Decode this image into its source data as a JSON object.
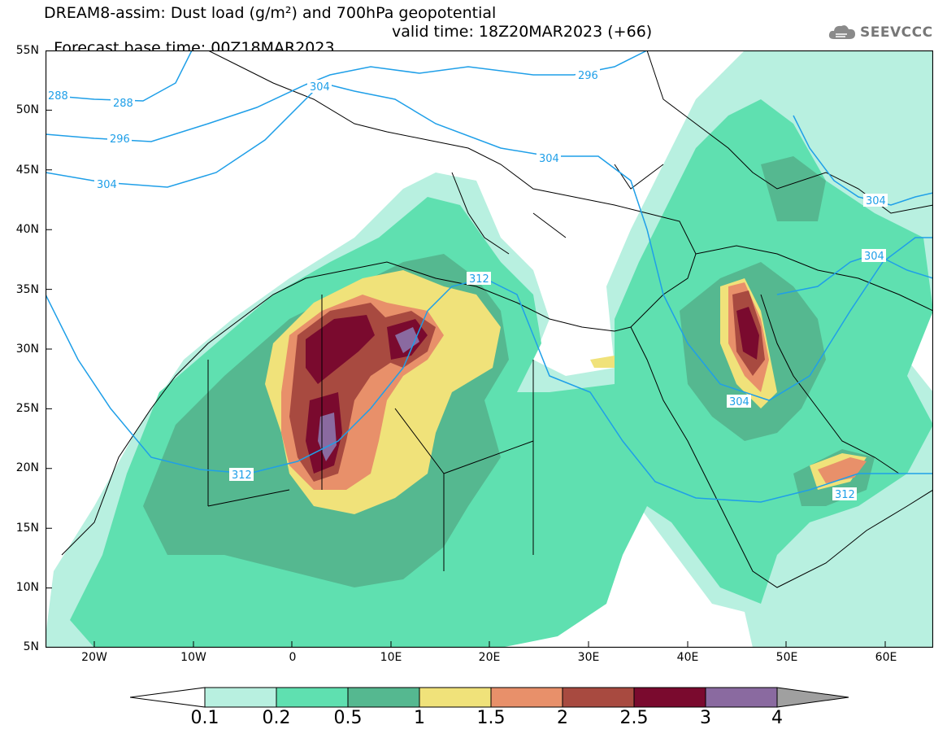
{
  "title": {
    "line1": "DREAM8-assim: Dust load (g/m²) and 700hPa geopotential",
    "line2_base": "Forecast base time: 00Z18MAR2023",
    "line2_valid": "valid time: 18Z20MAR2023 (+66)"
  },
  "logo": {
    "icon": "cloud-logo-icon",
    "text": "SEEVCCC"
  },
  "axes": {
    "lat_ticks": [
      "55N",
      "50N",
      "45N",
      "40N",
      "35N",
      "30N",
      "25N",
      "20N",
      "15N",
      "10N",
      "5N"
    ],
    "lon_ticks": [
      "20W",
      "10W",
      "0",
      "10E",
      "20E",
      "30E",
      "40E",
      "50E",
      "60E"
    ]
  },
  "contour_labels": {
    "items": [
      "288",
      "288",
      "296",
      "304",
      "304",
      "296",
      "304",
      "304",
      "304",
      "312",
      "312",
      "304",
      "312"
    ]
  },
  "colorbar": {
    "labels": [
      "0.1",
      "0.2",
      "0.5",
      "1",
      "1.5",
      "2",
      "2.5",
      "3",
      "4"
    ],
    "colors": [
      "#ffffff",
      "#b8f0e0",
      "#5fe0b0",
      "#55b890",
      "#f0e27a",
      "#e8906a",
      "#a84a40",
      "#7a0a2e",
      "#8a6aa0",
      "#a0a0a0"
    ]
  },
  "colors": {
    "geopotential_line": "#1f9fe8",
    "coastline": "#000000",
    "dust_01": "#b8f0e0",
    "dust_02": "#5fe0b0",
    "dust_05": "#55b890",
    "dust_1": "#f0e27a",
    "dust_15": "#e8906a",
    "dust_2": "#a84a40",
    "dust_25": "#7a0a2e",
    "dust_3": "#8a6aa0"
  }
}
